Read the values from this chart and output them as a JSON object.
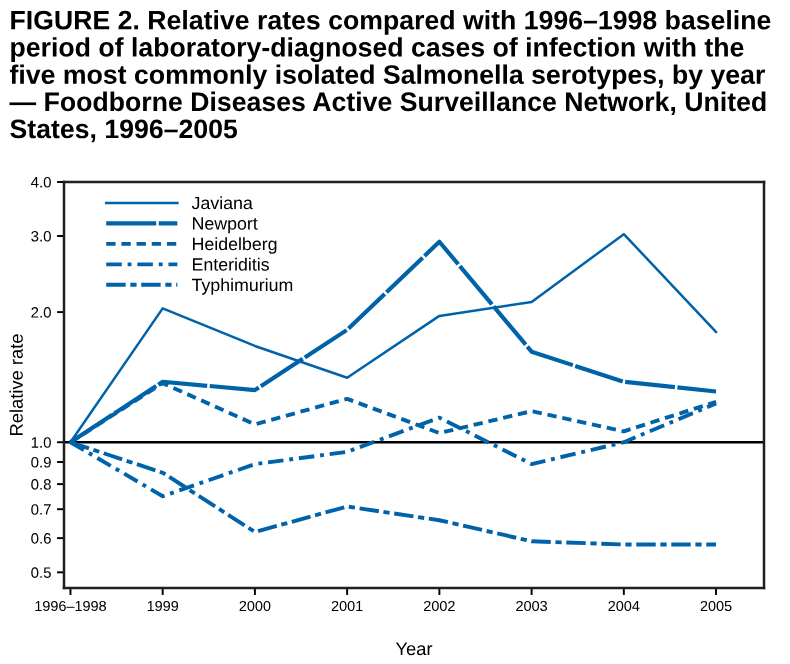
{
  "chart_data": {
    "type": "line",
    "title": "FIGURE 2. Relative rates compared with 1996–1998 baseline period of laboratory-diagnosed cases of infection with the five most commonly isolated Salmonella serotypes, by year — Foodborne Diseases Active Surveillance Network, United States, 1996–2005",
    "xlabel": "Year",
    "ylabel": "Relative rate",
    "categories": [
      "1996–1998",
      "1999",
      "2000",
      "2001",
      "2002",
      "2003",
      "2004",
      "2005"
    ],
    "series": [
      {
        "name": "Javiana",
        "color": "#0063aa",
        "line_style": "solid",
        "values": [
          1.0,
          2.04,
          1.67,
          1.41,
          1.96,
          2.11,
          3.03,
          1.8
        ]
      },
      {
        "name": "Newport",
        "color": "#0063aa",
        "line_style": "longdash",
        "values": [
          1.0,
          1.38,
          1.32,
          1.82,
          2.91,
          1.62,
          1.38,
          1.31
        ]
      },
      {
        "name": "Heidelberg",
        "color": "#0063aa",
        "line_style": "dashed",
        "values": [
          1.0,
          1.37,
          1.1,
          1.26,
          1.05,
          1.18,
          1.06,
          1.24
        ]
      },
      {
        "name": "Enteriditis",
        "color": "#0063aa",
        "line_style": "dashdot",
        "values": [
          1.0,
          0.75,
          0.89,
          0.95,
          1.14,
          0.89,
          1.0,
          1.23
        ]
      },
      {
        "name": "Typhimurium",
        "color": "#0063aa",
        "line_style": "longdashdot",
        "values": [
          1.0,
          0.85,
          0.62,
          0.71,
          0.66,
          0.59,
          0.58,
          0.58
        ]
      }
    ],
    "log": "y",
    "ylim": [
      0.46,
      4.0
    ],
    "yticks": [
      0.5,
      0.6,
      0.7,
      0.8,
      0.9,
      {
        "value": 1,
        "label": "1.0"
      },
      {
        "value": 2,
        "label": "2.0"
      },
      {
        "value": 3,
        "label": "3.0"
      },
      {
        "value": 4,
        "label": "4.0"
      }
    ],
    "ref_lines": [
      {
        "axis": "y",
        "value": 1,
        "color": "#000000"
      }
    ],
    "legend": "top left",
    "grid": false
  }
}
